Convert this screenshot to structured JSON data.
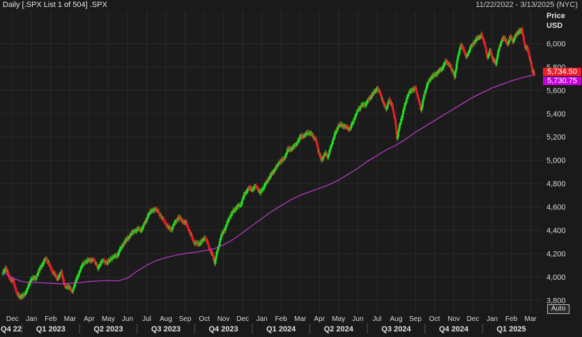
{
  "header": {
    "title": "Daily [.SPX List 1 of 504] .SPX",
    "date_range": "11/22/2022 - 3/13/2025 (NYC)"
  },
  "axis": {
    "price_label": "Price",
    "currency_label": "USD",
    "auto_label": "Auto"
  },
  "tags": {
    "last_price": "5,734.50",
    "moving_average": "5,730.75"
  },
  "colors": {
    "up": "#22e022",
    "down": "#e8202a",
    "moving_average": "#c43ad0",
    "grid": "#2b2b2b"
  },
  "chart_data": {
    "type": "candlestick",
    "ylim": [
      3700,
      6200
    ],
    "y_ticks": [
      {
        "value": 3800,
        "label": "3,800"
      },
      {
        "value": 4000,
        "label": "4,000"
      },
      {
        "value": 4200,
        "label": "4,200"
      },
      {
        "value": 4400,
        "label": "4,400"
      },
      {
        "value": 4600,
        "label": "4,600"
      },
      {
        "value": 4800,
        "label": "4,800"
      },
      {
        "value": 5000,
        "label": "5,000"
      },
      {
        "value": 5200,
        "label": "5,200"
      },
      {
        "value": 5400,
        "label": "5,400"
      },
      {
        "value": 5600,
        "label": "5,600"
      },
      {
        "value": 5800,
        "label": "5,800"
      },
      {
        "value": 6000,
        "label": "6,000"
      }
    ],
    "month_ticks": [
      {
        "label": "Dec",
        "t": 0.5
      },
      {
        "label": "Jan",
        "t": 1.5
      },
      {
        "label": "Feb",
        "t": 2.5
      },
      {
        "label": "Mar",
        "t": 3.5
      },
      {
        "label": "Apr",
        "t": 4.5
      },
      {
        "label": "May",
        "t": 5.5
      },
      {
        "label": "Jun",
        "t": 6.5
      },
      {
        "label": "Jul",
        "t": 7.5
      },
      {
        "label": "Aug",
        "t": 8.5
      },
      {
        "label": "Sep",
        "t": 9.5
      },
      {
        "label": "Oct",
        "t": 10.5
      },
      {
        "label": "Nov",
        "t": 11.5
      },
      {
        "label": "Dec",
        "t": 12.5
      },
      {
        "label": "Jan",
        "t": 13.5
      },
      {
        "label": "Feb",
        "t": 14.5
      },
      {
        "label": "Mar",
        "t": 15.5
      },
      {
        "label": "Apr",
        "t": 16.5
      },
      {
        "label": "May",
        "t": 17.5
      },
      {
        "label": "Jun",
        "t": 18.5
      },
      {
        "label": "Jul",
        "t": 19.5
      },
      {
        "label": "Aug",
        "t": 20.5
      },
      {
        "label": "Sep",
        "t": 21.5
      },
      {
        "label": "Oct",
        "t": 22.5
      },
      {
        "label": "Nov",
        "t": 23.5
      },
      {
        "label": "Dec",
        "t": 24.5
      },
      {
        "label": "Jan",
        "t": 25.5
      },
      {
        "label": "Feb",
        "t": 26.5
      },
      {
        "label": "Mar",
        "t": 27.5
      }
    ],
    "quarter_ticks": [
      {
        "label": "Q4 22",
        "t": 0.3
      },
      {
        "label": "Q1 2023",
        "t": 2.5
      },
      {
        "label": "Q2 2023",
        "t": 5.5
      },
      {
        "label": "Q3 2023",
        "t": 8.5
      },
      {
        "label": "Q4 2023",
        "t": 11.5
      },
      {
        "label": "Q1 2024",
        "t": 14.5
      },
      {
        "label": "Q2 2024",
        "t": 17.5
      },
      {
        "label": "Q3 2024",
        "t": 20.5
      },
      {
        "label": "Q4 2024",
        "t": 23.5
      },
      {
        "label": "Q1 2025",
        "t": 26.5
      }
    ],
    "quarter_separators": [
      1,
      4,
      7,
      10,
      13,
      16,
      19,
      22,
      25
    ],
    "t_range": [
      0,
      27.75
    ],
    "close_series": [
      {
        "t": 0.0,
        "v": 4030
      },
      {
        "t": 0.15,
        "v": 4075
      },
      {
        "t": 0.35,
        "v": 3990
      },
      {
        "t": 0.55,
        "v": 3960
      },
      {
        "t": 0.75,
        "v": 3850
      },
      {
        "t": 0.9,
        "v": 3830
      },
      {
        "t": 1.1,
        "v": 3840
      },
      {
        "t": 1.3,
        "v": 3905
      },
      {
        "t": 1.5,
        "v": 3990
      },
      {
        "t": 1.7,
        "v": 3985
      },
      {
        "t": 1.9,
        "v": 4060
      },
      {
        "t": 2.1,
        "v": 4120
      },
      {
        "t": 2.25,
        "v": 4160
      },
      {
        "t": 2.45,
        "v": 4090
      },
      {
        "t": 2.65,
        "v": 4030
      },
      {
        "t": 2.85,
        "v": 3985
      },
      {
        "t": 3.05,
        "v": 4040
      },
      {
        "t": 3.25,
        "v": 3910
      },
      {
        "t": 3.45,
        "v": 3920
      },
      {
        "t": 3.6,
        "v": 3870
      },
      {
        "t": 3.8,
        "v": 3960
      },
      {
        "t": 4.0,
        "v": 4050
      },
      {
        "t": 4.2,
        "v": 4120
      },
      {
        "t": 4.45,
        "v": 4140
      },
      {
        "t": 4.7,
        "v": 4150
      },
      {
        "t": 4.95,
        "v": 4080
      },
      {
        "t": 5.2,
        "v": 4140
      },
      {
        "t": 5.45,
        "v": 4120
      },
      {
        "t": 5.7,
        "v": 4170
      },
      {
        "t": 5.95,
        "v": 4180
      },
      {
        "t": 6.1,
        "v": 4230
      },
      {
        "t": 6.3,
        "v": 4290
      },
      {
        "t": 6.5,
        "v": 4330
      },
      {
        "t": 6.75,
        "v": 4380
      },
      {
        "t": 7.0,
        "v": 4410
      },
      {
        "t": 7.2,
        "v": 4400
      },
      {
        "t": 7.4,
        "v": 4460
      },
      {
        "t": 7.6,
        "v": 4540
      },
      {
        "t": 7.85,
        "v": 4580
      },
      {
        "t": 8.05,
        "v": 4570
      },
      {
        "t": 8.3,
        "v": 4500
      },
      {
        "t": 8.55,
        "v": 4440
      },
      {
        "t": 8.75,
        "v": 4400
      },
      {
        "t": 8.95,
        "v": 4460
      },
      {
        "t": 9.15,
        "v": 4510
      },
      {
        "t": 9.35,
        "v": 4480
      },
      {
        "t": 9.55,
        "v": 4460
      },
      {
        "t": 9.75,
        "v": 4380
      },
      {
        "t": 9.95,
        "v": 4300
      },
      {
        "t": 10.15,
        "v": 4280
      },
      {
        "t": 10.35,
        "v": 4300
      },
      {
        "t": 10.55,
        "v": 4340
      },
      {
        "t": 10.75,
        "v": 4250
      },
      {
        "t": 10.95,
        "v": 4180
      },
      {
        "t": 11.05,
        "v": 4120
      },
      {
        "t": 11.2,
        "v": 4240
      },
      {
        "t": 11.4,
        "v": 4360
      },
      {
        "t": 11.6,
        "v": 4420
      },
      {
        "t": 11.8,
        "v": 4510
      },
      {
        "t": 12.0,
        "v": 4560
      },
      {
        "t": 12.2,
        "v": 4600
      },
      {
        "t": 12.4,
        "v": 4620
      },
      {
        "t": 12.6,
        "v": 4710
      },
      {
        "t": 12.8,
        "v": 4760
      },
      {
        "t": 13.0,
        "v": 4750
      },
      {
        "t": 13.2,
        "v": 4780
      },
      {
        "t": 13.4,
        "v": 4720
      },
      {
        "t": 13.6,
        "v": 4770
      },
      {
        "t": 13.8,
        "v": 4830
      },
      {
        "t": 14.0,
        "v": 4880
      },
      {
        "t": 14.2,
        "v": 4930
      },
      {
        "t": 14.45,
        "v": 4990
      },
      {
        "t": 14.65,
        "v": 5010
      },
      {
        "t": 14.85,
        "v": 5090
      },
      {
        "t": 15.05,
        "v": 5100
      },
      {
        "t": 15.25,
        "v": 5130
      },
      {
        "t": 15.5,
        "v": 5200
      },
      {
        "t": 15.7,
        "v": 5210
      },
      {
        "t": 15.9,
        "v": 5240
      },
      {
        "t": 16.1,
        "v": 5220
      },
      {
        "t": 16.3,
        "v": 5180
      },
      {
        "t": 16.45,
        "v": 5080
      },
      {
        "t": 16.6,
        "v": 5000
      },
      {
        "t": 16.8,
        "v": 5060
      },
      {
        "t": 16.95,
        "v": 5030
      },
      {
        "t": 17.1,
        "v": 5120
      },
      {
        "t": 17.3,
        "v": 5220
      },
      {
        "t": 17.5,
        "v": 5300
      },
      {
        "t": 17.7,
        "v": 5300
      },
      {
        "t": 17.9,
        "v": 5280
      },
      {
        "t": 18.1,
        "v": 5270
      },
      {
        "t": 18.3,
        "v": 5350
      },
      {
        "t": 18.5,
        "v": 5430
      },
      {
        "t": 18.7,
        "v": 5470
      },
      {
        "t": 18.9,
        "v": 5480
      },
      {
        "t": 19.1,
        "v": 5530
      },
      {
        "t": 19.3,
        "v": 5570
      },
      {
        "t": 19.5,
        "v": 5620
      },
      {
        "t": 19.7,
        "v": 5560
      },
      {
        "t": 19.85,
        "v": 5480
      },
      {
        "t": 20.0,
        "v": 5440
      },
      {
        "t": 20.15,
        "v": 5520
      },
      {
        "t": 20.3,
        "v": 5460
      },
      {
        "t": 20.45,
        "v": 5340
      },
      {
        "t": 20.55,
        "v": 5190
      },
      {
        "t": 20.7,
        "v": 5310
      },
      {
        "t": 20.9,
        "v": 5440
      },
      {
        "t": 21.1,
        "v": 5560
      },
      {
        "t": 21.3,
        "v": 5600
      },
      {
        "t": 21.5,
        "v": 5620
      },
      {
        "t": 21.65,
        "v": 5530
      },
      {
        "t": 21.8,
        "v": 5430
      },
      {
        "t": 21.95,
        "v": 5550
      },
      {
        "t": 22.1,
        "v": 5640
      },
      {
        "t": 22.3,
        "v": 5710
      },
      {
        "t": 22.5,
        "v": 5730
      },
      {
        "t": 22.7,
        "v": 5760
      },
      {
        "t": 22.9,
        "v": 5790
      },
      {
        "t": 23.1,
        "v": 5850
      },
      {
        "t": 23.3,
        "v": 5810
      },
      {
        "t": 23.45,
        "v": 5760
      },
      {
        "t": 23.55,
        "v": 5720
      },
      {
        "t": 23.7,
        "v": 5870
      },
      {
        "t": 23.85,
        "v": 5980
      },
      {
        "t": 24.0,
        "v": 5960
      },
      {
        "t": 24.15,
        "v": 5880
      },
      {
        "t": 24.35,
        "v": 5960
      },
      {
        "t": 24.55,
        "v": 6010
      },
      {
        "t": 24.75,
        "v": 6050
      },
      {
        "t": 24.95,
        "v": 6070
      },
      {
        "t": 25.1,
        "v": 6010
      },
      {
        "t": 25.25,
        "v": 5880
      },
      {
        "t": 25.4,
        "v": 5940
      },
      {
        "t": 25.55,
        "v": 5860
      },
      {
        "t": 25.7,
        "v": 5830
      },
      {
        "t": 25.85,
        "v": 5950
      },
      {
        "t": 26.0,
        "v": 6030
      },
      {
        "t": 26.15,
        "v": 6050
      },
      {
        "t": 26.3,
        "v": 5990
      },
      {
        "t": 26.45,
        "v": 6060
      },
      {
        "t": 26.6,
        "v": 6020
      },
      {
        "t": 26.75,
        "v": 6080
      },
      {
        "t": 26.9,
        "v": 6100
      },
      {
        "t": 27.05,
        "v": 6120
      },
      {
        "t": 27.2,
        "v": 5980
      },
      {
        "t": 27.35,
        "v": 5950
      },
      {
        "t": 27.5,
        "v": 5850
      },
      {
        "t": 27.6,
        "v": 5770
      },
      {
        "t": 27.7,
        "v": 5734.5
      }
    ],
    "moving_average_series": [
      {
        "t": 0.0,
        "v": 4040
      },
      {
        "t": 0.5,
        "v": 3990
      },
      {
        "t": 1.0,
        "v": 3960
      },
      {
        "t": 1.5,
        "v": 3950
      },
      {
        "t": 2.0,
        "v": 3950
      },
      {
        "t": 2.5,
        "v": 3945
      },
      {
        "t": 3.0,
        "v": 3940
      },
      {
        "t": 3.5,
        "v": 3945
      },
      {
        "t": 4.0,
        "v": 3950
      },
      {
        "t": 4.5,
        "v": 3960
      },
      {
        "t": 5.0,
        "v": 3965
      },
      {
        "t": 5.5,
        "v": 3968
      },
      {
        "t": 6.0,
        "v": 3965
      },
      {
        "t": 6.5,
        "v": 3990
      },
      {
        "t": 7.0,
        "v": 4050
      },
      {
        "t": 7.5,
        "v": 4100
      },
      {
        "t": 8.0,
        "v": 4140
      },
      {
        "t": 8.5,
        "v": 4165
      },
      {
        "t": 9.0,
        "v": 4185
      },
      {
        "t": 9.5,
        "v": 4200
      },
      {
        "t": 10.0,
        "v": 4210
      },
      {
        "t": 10.5,
        "v": 4225
      },
      {
        "t": 11.0,
        "v": 4240
      },
      {
        "t": 11.5,
        "v": 4275
      },
      {
        "t": 12.0,
        "v": 4320
      },
      {
        "t": 12.5,
        "v": 4380
      },
      {
        "t": 13.0,
        "v": 4440
      },
      {
        "t": 13.5,
        "v": 4500
      },
      {
        "t": 14.0,
        "v": 4560
      },
      {
        "t": 14.5,
        "v": 4610
      },
      {
        "t": 15.0,
        "v": 4660
      },
      {
        "t": 15.5,
        "v": 4700
      },
      {
        "t": 16.0,
        "v": 4730
      },
      {
        "t": 16.5,
        "v": 4760
      },
      {
        "t": 17.0,
        "v": 4790
      },
      {
        "t": 17.5,
        "v": 4830
      },
      {
        "t": 18.0,
        "v": 4880
      },
      {
        "t": 18.5,
        "v": 4930
      },
      {
        "t": 19.0,
        "v": 4990
      },
      {
        "t": 19.5,
        "v": 5040
      },
      {
        "t": 20.0,
        "v": 5090
      },
      {
        "t": 20.5,
        "v": 5130
      },
      {
        "t": 21.0,
        "v": 5180
      },
      {
        "t": 21.5,
        "v": 5240
      },
      {
        "t": 22.0,
        "v": 5290
      },
      {
        "t": 22.5,
        "v": 5340
      },
      {
        "t": 23.0,
        "v": 5390
      },
      {
        "t": 23.5,
        "v": 5440
      },
      {
        "t": 24.0,
        "v": 5490
      },
      {
        "t": 24.5,
        "v": 5540
      },
      {
        "t": 25.0,
        "v": 5580
      },
      {
        "t": 25.5,
        "v": 5620
      },
      {
        "t": 26.0,
        "v": 5650
      },
      {
        "t": 26.5,
        "v": 5680
      },
      {
        "t": 27.0,
        "v": 5705
      },
      {
        "t": 27.5,
        "v": 5725
      },
      {
        "t": 27.7,
        "v": 5730.75
      }
    ]
  }
}
